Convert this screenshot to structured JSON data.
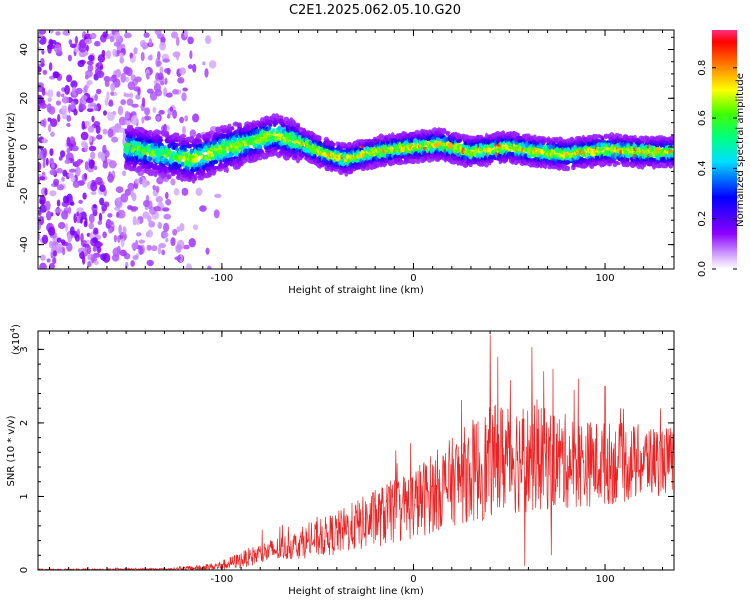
{
  "title": "C2E1.2025.062.05.10.G20",
  "colors": {
    "background": "#ffffff",
    "snr_line": "#ee2222",
    "axis": "#000000"
  },
  "chart_data": [
    {
      "type": "heatmap",
      "title": "C2E1.2025.062.05.10.G20",
      "xlabel": "Height of straight line (km)",
      "ylabel": "Frequency (Hz)",
      "xlim": [
        -196,
        136
      ],
      "ylim": [
        -50,
        48
      ],
      "xticks": [
        -100,
        0,
        100
      ],
      "yticks": [
        -40,
        -20,
        0,
        20,
        40
      ],
      "grid": false,
      "signal_start_x": -150,
      "center_frequency_trend": [
        {
          "x": -150,
          "y": 0
        },
        {
          "x": -130,
          "y": -3
        },
        {
          "x": -115,
          "y": -5
        },
        {
          "x": -100,
          "y": -1
        },
        {
          "x": -85,
          "y": 2
        },
        {
          "x": -72,
          "y": 5
        },
        {
          "x": -60,
          "y": 2
        },
        {
          "x": -45,
          "y": -3
        },
        {
          "x": -35,
          "y": -5
        },
        {
          "x": -20,
          "y": -2
        },
        {
          "x": 0,
          "y": 0
        },
        {
          "x": 15,
          "y": 1
        },
        {
          "x": 30,
          "y": -2
        },
        {
          "x": 50,
          "y": 0
        },
        {
          "x": 65,
          "y": -2
        },
        {
          "x": 80,
          "y": -3
        },
        {
          "x": 100,
          "y": -1
        },
        {
          "x": 120,
          "y": -2
        },
        {
          "x": 136,
          "y": -2
        }
      ],
      "colorbar": {
        "label": "Normalized spectral amplitude",
        "range": [
          0,
          0.95
        ],
        "ticks": [
          0.0,
          0.2,
          0.4,
          0.6,
          0.8
        ],
        "tick_labels": [
          "0.0",
          "0.2",
          "0.4",
          "0.6",
          "0.8"
        ],
        "colormap": "rainbow (white-violet-blue-cyan-green-yellow-red)"
      }
    },
    {
      "type": "line",
      "xlabel": "Height of straight line (km)",
      "ylabel": "SNR (10 * v/v)",
      "scale_note_base": "(x10",
      "scale_note_exp": "4",
      "scale_note_end": ")",
      "xlim": [
        -196,
        136
      ],
      "ylim": [
        0,
        3.25
      ],
      "xticks": [
        -100,
        0,
        100
      ],
      "yticks": [
        0,
        1,
        2,
        3
      ],
      "grid": false,
      "series": [
        {
          "color": "#ee2222",
          "envelope": [
            {
              "x": -196,
              "mean": 0.005,
              "spread": 0.01
            },
            {
              "x": -130,
              "mean": 0.01,
              "spread": 0.015
            },
            {
              "x": -110,
              "mean": 0.03,
              "spread": 0.04
            },
            {
              "x": -100,
              "mean": 0.06,
              "spread": 0.07
            },
            {
              "x": -80,
              "mean": 0.22,
              "spread": 0.15
            },
            {
              "x": -60,
              "mean": 0.35,
              "spread": 0.2
            },
            {
              "x": -40,
              "mean": 0.5,
              "spread": 0.3
            },
            {
              "x": -20,
              "mean": 0.7,
              "spread": 0.4
            },
            {
              "x": 0,
              "mean": 0.9,
              "spread": 0.5
            },
            {
              "x": 20,
              "mean": 1.2,
              "spread": 0.6
            },
            {
              "x": 35,
              "mean": 1.4,
              "spread": 0.75
            },
            {
              "x": 50,
              "mean": 1.55,
              "spread": 0.8
            },
            {
              "x": 70,
              "mean": 1.5,
              "spread": 0.7
            },
            {
              "x": 90,
              "mean": 1.45,
              "spread": 0.6
            },
            {
              "x": 110,
              "mean": 1.45,
              "spread": 0.55
            },
            {
              "x": 136,
              "mean": 1.5,
              "spread": 0.45
            }
          ],
          "peaks": [
            {
              "x": 40,
              "y": 3.2
            },
            {
              "x": 44,
              "y": 2.9
            },
            {
              "x": 58,
              "y": 3.0
            },
            {
              "x": 68,
              "y": 2.7
            },
            {
              "x": 86,
              "y": 2.6
            },
            {
              "x": 100,
              "y": 2.5
            },
            {
              "x": 108,
              "y": 2.2
            },
            {
              "x": 58,
              "y": 0.05
            },
            {
              "x": 72,
              "y": 0.2
            }
          ]
        }
      ]
    }
  ]
}
